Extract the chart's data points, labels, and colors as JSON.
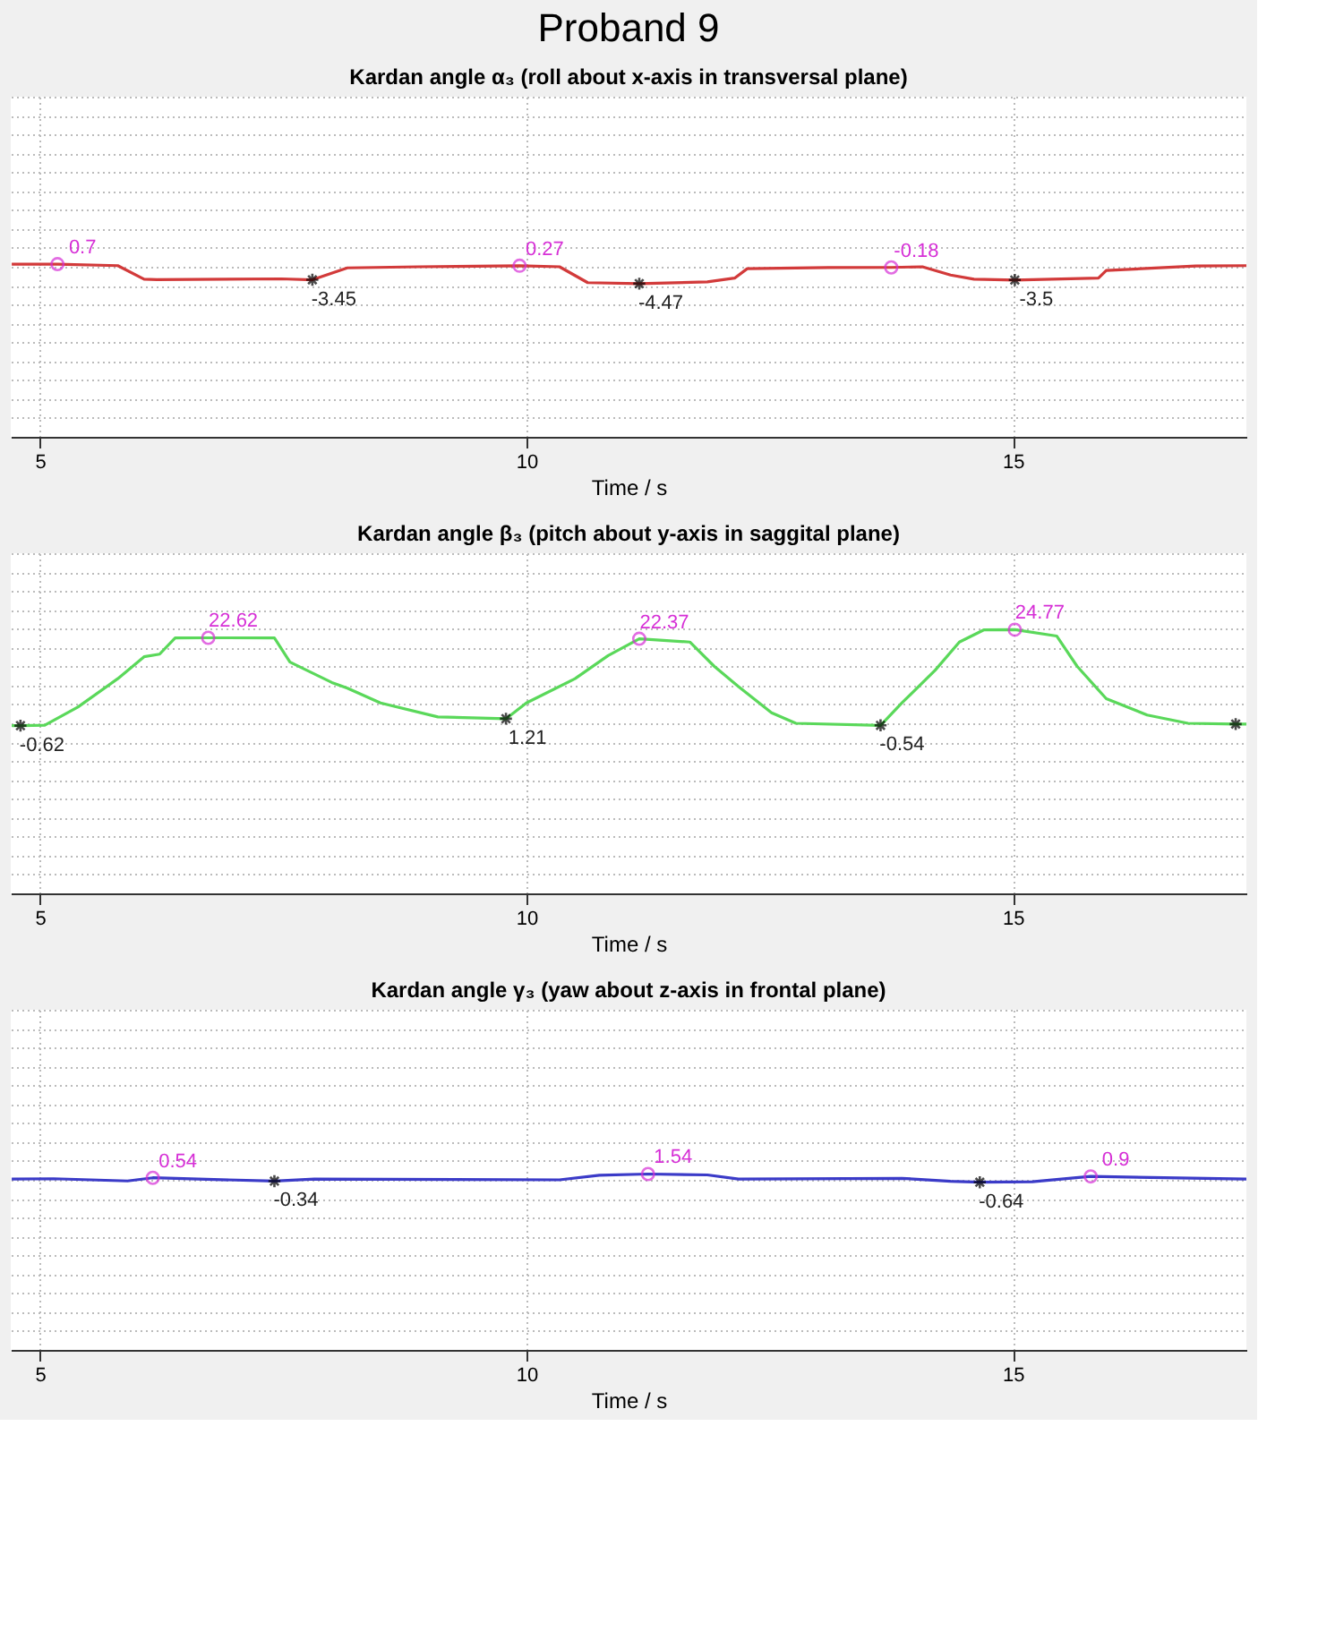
{
  "chart_data": [
    {
      "type": "line",
      "title": "Proband 9",
      "subtitle": "Kardan angle α₃ (roll about x-axis in transversal plane)",
      "xlabel": "Time / s",
      "xlim": [
        4.7,
        17.4
      ],
      "xticks": [
        5,
        10,
        15
      ],
      "ylim": [
        -45,
        45
      ],
      "tick_labels": "x",
      "grid": true,
      "line_style": "solid",
      "series": [
        {
          "color": "#d23a3a",
          "x": [
            4.71,
            5.18,
            5.8,
            6.07,
            6.2,
            7.48,
            7.8,
            8.16,
            8.9,
            9.93,
            10.34,
            10.63,
            11.16,
            11.86,
            12.14,
            12.27,
            13.1,
            13.75,
            14.07,
            14.36,
            14.6,
            15.02,
            15.88,
            15.96,
            16.88,
            17.4
          ],
          "values": [
            0.7,
            0.7,
            0.3,
            -3.3,
            -3.4,
            -3.2,
            -3.45,
            -0.3,
            0.0,
            0.27,
            0.0,
            -4.2,
            -4.47,
            -4.0,
            -3.0,
            -0.5,
            -0.2,
            -0.18,
            0.0,
            -2.2,
            -3.3,
            -3.5,
            -3.0,
            -1.0,
            0.2,
            0.3
          ]
        },
        {
          "type": "scatter",
          "marker": "circle",
          "color": "#d62fd6",
          "x": [
            5.18,
            9.93,
            13.75
          ],
          "values": [
            0.7,
            0.27,
            -0.18
          ],
          "value_labels": [
            "0.7",
            "0.27",
            "-0.18"
          ]
        },
        {
          "type": "scatter",
          "marker": "cross",
          "color": "#000000",
          "x": [
            7.8,
            11.16,
            15.02
          ],
          "values": [
            -3.45,
            -4.47,
            -3.5
          ],
          "value_labels": [
            "-3.45",
            "-4.47",
            "-3.5"
          ]
        }
      ]
    },
    {
      "type": "line",
      "title": "Kardan angle β₃ (pitch about y-axis in saggital plane)",
      "xlabel": "Time / s",
      "xlim": [
        4.7,
        17.4
      ],
      "xticks": [
        5,
        10,
        15
      ],
      "ylim": [
        -45,
        45
      ],
      "tick_labels": "x",
      "grid": true,
      "line_style": "solid",
      "series": [
        {
          "color": "#5ad85a",
          "x": [
            4.71,
            4.8,
            5.05,
            5.39,
            5.8,
            6.07,
            6.23,
            6.39,
            6.73,
            7.41,
            7.57,
            8.0,
            8.16,
            8.5,
            9.09,
            9.79,
            10.0,
            10.5,
            10.84,
            11.16,
            11.68,
            11.93,
            12.18,
            12.52,
            12.77,
            13.64,
            13.86,
            14.2,
            14.45,
            14.7,
            15.02,
            15.45,
            15.66,
            15.96,
            16.38,
            16.8,
            17.29,
            17.4
          ],
          "values": [
            -0.62,
            -0.62,
            -0.5,
            4.3,
            11.8,
            17.6,
            18.3,
            22.6,
            22.62,
            22.6,
            16.2,
            10.8,
            9.3,
            5.4,
            1.7,
            1.21,
            5.4,
            11.8,
            17.9,
            22.37,
            21.5,
            15.1,
            9.7,
            2.8,
            0.0,
            -0.54,
            5.4,
            14.0,
            21.5,
            24.7,
            24.77,
            23.1,
            15.1,
            6.5,
            2.2,
            0.0,
            -0.2,
            -0.2
          ]
        },
        {
          "type": "scatter",
          "marker": "circle",
          "color": "#d62fd6",
          "x": [
            6.73,
            11.16,
            15.02
          ],
          "values": [
            22.62,
            22.37,
            24.77
          ],
          "value_labels": [
            "22.62",
            "22.37",
            "24.77"
          ]
        },
        {
          "type": "scatter",
          "marker": "cross",
          "color": "#000000",
          "x": [
            4.8,
            9.79,
            13.64,
            17.29
          ],
          "values": [
            -0.62,
            1.21,
            -0.54,
            -0.2
          ],
          "value_labels": [
            "-0.62",
            "1.21",
            "-0.54",
            null
          ]
        }
      ]
    },
    {
      "type": "line",
      "title": "Kardan angle γ₃ (yaw about z-axis in frontal plane)",
      "xlabel": "Time / s",
      "xlim": [
        4.7,
        17.4
      ],
      "xticks": [
        5,
        10,
        15
      ],
      "ylim": [
        -45,
        45
      ],
      "tick_labels": "x",
      "grid": true,
      "line_style": "solid",
      "series": [
        {
          "color": "#3b3bc8",
          "x": [
            4.71,
            5.14,
            5.9,
            6.16,
            7.41,
            7.82,
            10.34,
            10.75,
            11.25,
            11.86,
            12.18,
            13.86,
            14.36,
            14.66,
            15.2,
            15.8,
            17.4
          ],
          "values": [
            0.2,
            0.3,
            -0.3,
            0.54,
            -0.34,
            0.2,
            0.0,
            1.2,
            1.54,
            1.3,
            0.2,
            0.4,
            -0.4,
            -0.64,
            -0.5,
            0.9,
            0.2
          ]
        },
        {
          "type": "scatter",
          "marker": "circle",
          "color": "#d62fd6",
          "x": [
            6.16,
            11.25,
            15.8
          ],
          "values": [
            0.54,
            1.54,
            0.9
          ],
          "value_labels": [
            "0.54",
            "1.54",
            "0.9"
          ]
        },
        {
          "type": "scatter",
          "marker": "cross",
          "color": "#000000",
          "x": [
            7.41,
            14.66
          ],
          "values": [
            -0.34,
            -0.64
          ],
          "value_labels": [
            "-0.34",
            "-0.64"
          ]
        }
      ]
    }
  ]
}
